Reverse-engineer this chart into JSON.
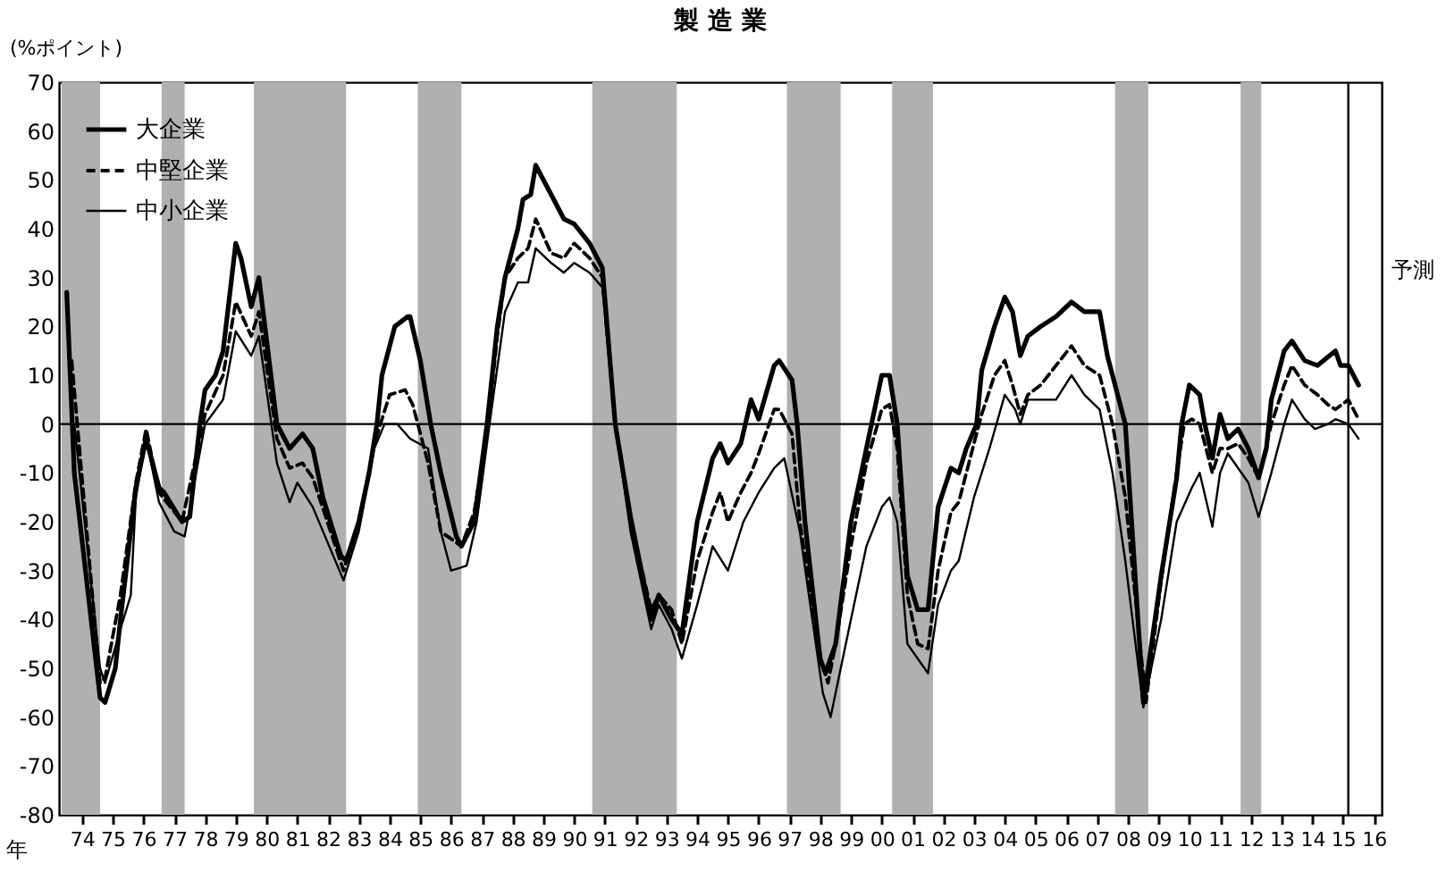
{
  "chart_data": {
    "type": "line",
    "title": "製 造 業",
    "ylabel": "(%ポイント)",
    "xlabel": "年",
    "xlim": [
      "1973-10",
      "2016-10"
    ],
    "ylim": [
      -80,
      70
    ],
    "yticks": [
      -80,
      -70,
      -60,
      -50,
      -40,
      -30,
      -20,
      -10,
      0,
      10,
      20,
      30,
      40,
      50,
      60,
      70
    ],
    "xticks": [
      {
        "value": "1974-07",
        "label": "74"
      },
      {
        "value": "1975-07",
        "label": "75"
      },
      {
        "value": "1976-07",
        "label": "76"
      },
      {
        "value": "1977-07",
        "label": "77"
      },
      {
        "value": "1978-07",
        "label": "78"
      },
      {
        "value": "1979-07",
        "label": "79"
      },
      {
        "value": "1980-07",
        "label": "80"
      },
      {
        "value": "1981-07",
        "label": "81"
      },
      {
        "value": "1982-07",
        "label": "82"
      },
      {
        "value": "1983-07",
        "label": "83"
      },
      {
        "value": "1984-07",
        "label": "84"
      },
      {
        "value": "1985-07",
        "label": "85"
      },
      {
        "value": "1986-07",
        "label": "86"
      },
      {
        "value": "1987-07",
        "label": "87"
      },
      {
        "value": "1988-07",
        "label": "88"
      },
      {
        "value": "1989-07",
        "label": "89"
      },
      {
        "value": "1990-07",
        "label": "90"
      },
      {
        "value": "1991-07",
        "label": "91"
      },
      {
        "value": "1992-07",
        "label": "92"
      },
      {
        "value": "1993-07",
        "label": "93"
      },
      {
        "value": "1994-07",
        "label": "94"
      },
      {
        "value": "1995-07",
        "label": "95"
      },
      {
        "value": "1996-07",
        "label": "96"
      },
      {
        "value": "1997-07",
        "label": "97"
      },
      {
        "value": "1998-07",
        "label": "98"
      },
      {
        "value": "1999-07",
        "label": "99"
      },
      {
        "value": "2000-07",
        "label": "00"
      },
      {
        "value": "2001-07",
        "label": "01"
      },
      {
        "value": "2002-07",
        "label": "02"
      },
      {
        "value": "2003-07",
        "label": "03"
      },
      {
        "value": "2004-07",
        "label": "04"
      },
      {
        "value": "2005-07",
        "label": "05"
      },
      {
        "value": "2006-07",
        "label": "06"
      },
      {
        "value": "2007-07",
        "label": "07"
      },
      {
        "value": "2008-07",
        "label": "08"
      },
      {
        "value": "2009-07",
        "label": "09"
      },
      {
        "value": "2010-07",
        "label": "10"
      },
      {
        "value": "2011-07",
        "label": "11"
      },
      {
        "value": "2012-07",
        "label": "12"
      },
      {
        "value": "2013-07",
        "label": "13"
      },
      {
        "value": "2014-07",
        "label": "14"
      },
      {
        "value": "2015-07",
        "label": "15"
      },
      {
        "value": "2016-07",
        "label": "16"
      }
    ],
    "grid": false,
    "legend": "top left",
    "series": [
      {
        "name": "大企業",
        "color": "#000000",
        "line_style": "solid",
        "x": [
          "1974-01",
          "1974-04",
          "1975-02",
          "1975-04",
          "1975-08",
          "1975-10",
          "1976-04",
          "1976-08",
          "1977-01",
          "1977-03",
          "1977-10",
          "1978-01",
          "1978-05",
          "1978-07",
          "1978-11",
          "1979-02",
          "1979-07",
          "1979-09",
          "1980-01",
          "1980-04",
          "1980-11",
          "1981-04",
          "1981-09",
          "1982-01",
          "1982-05",
          "1982-12",
          "1983-02",
          "1983-07",
          "1983-11",
          "1984-02",
          "1984-04",
          "1984-09",
          "1985-02",
          "1985-03",
          "1985-07",
          "1985-11",
          "1986-03",
          "1986-09",
          "1986-11",
          "1987-04",
          "1987-09",
          "1988-01",
          "1988-04",
          "1988-09",
          "1988-11",
          "1989-02",
          "1989-04",
          "1989-11",
          "1990-03",
          "1990-07",
          "1991-01",
          "1991-06",
          "1991-11",
          "1992-05",
          "1993-01",
          "1993-04",
          "1993-09",
          "1994-01",
          "1994-07",
          "1995-01",
          "1995-04",
          "1995-07",
          "1995-12",
          "1996-04",
          "1996-07",
          "1997-01",
          "1997-03",
          "1997-08",
          "1997-10",
          "1998-01",
          "1998-07",
          "1998-09",
          "1999-01",
          "1999-07",
          "1999-11",
          "2000-03",
          "2000-07",
          "2000-10",
          "2001-01",
          "2001-05",
          "2001-09",
          "2002-01",
          "2002-05",
          "2002-10",
          "2003-01",
          "2003-04",
          "2003-08",
          "2003-10",
          "2004-03",
          "2004-07",
          "2004-10",
          "2005-01",
          "2005-04",
          "2005-09",
          "2006-03",
          "2006-09",
          "2007-02",
          "2007-08",
          "2007-11",
          "2008-06",
          "2009-01",
          "2009-08",
          "2010-02",
          "2010-04",
          "2010-07",
          "2010-11",
          "2011-01",
          "2011-04",
          "2011-07",
          "2011-10",
          "2012-02",
          "2012-06",
          "2012-10",
          "2013-01",
          "2013-03",
          "2013-08",
          "2013-11",
          "2014-04",
          "2014-09",
          "2015-04",
          "2015-06",
          "2015-09",
          "2016-01"
        ],
        "values": [
          27,
          -10,
          -56,
          -57,
          -50,
          -40,
          -13,
          -3,
          -13,
          -14,
          -20,
          -19,
          0,
          7,
          10,
          15,
          37,
          34,
          24,
          30,
          0,
          -5,
          -2,
          -5,
          -15,
          -27,
          -28,
          -20,
          -10,
          0,
          10,
          20,
          22,
          22,
          13,
          0,
          -10,
          -23,
          -25,
          -20,
          0,
          20,
          30,
          40,
          46,
          47,
          53,
          46,
          42,
          41,
          37,
          32,
          0,
          -19,
          -40,
          -35,
          -40,
          -43,
          -20,
          -7,
          -4,
          -8,
          -4,
          5,
          1,
          12,
          13,
          9,
          0,
          -20,
          -48,
          -51,
          -45,
          -20,
          -10,
          0,
          10,
          10,
          0,
          -31,
          -38,
          -38,
          -17,
          -9,
          -10,
          -5,
          0,
          11,
          20,
          26,
          23,
          14,
          18,
          20,
          22,
          25,
          23,
          23,
          14,
          0,
          -57,
          -31,
          -11,
          0,
          8,
          6,
          0,
          -7,
          2,
          -3,
          -1,
          -5,
          -11,
          -5,
          5,
          15,
          17,
          13,
          12,
          15,
          12,
          12,
          8
        ]
      },
      {
        "name": "中堅企業",
        "color": "#000000",
        "line_style": "dashed",
        "x": [
          "1974-03",
          "1975-02",
          "1975-04",
          "1975-10",
          "1976-04",
          "1976-08",
          "1977-01",
          "1977-10",
          "1978-07",
          "1979-02",
          "1979-07",
          "1980-01",
          "1980-04",
          "1980-11",
          "1981-04",
          "1981-09",
          "1982-01",
          "1983-01",
          "1983-07",
          "1984-01",
          "1984-07",
          "1985-01",
          "1985-04",
          "1985-10",
          "1986-03",
          "1986-11",
          "1987-04",
          "1987-09",
          "1988-01",
          "1988-04",
          "1988-09",
          "1989-01",
          "1989-04",
          "1989-10",
          "1990-03",
          "1990-07",
          "1991-01",
          "1991-06",
          "1991-11",
          "1992-05",
          "1993-01",
          "1993-04",
          "1993-09",
          "1994-01",
          "1994-07",
          "1995-01",
          "1995-04",
          "1995-07",
          "1995-12",
          "1996-04",
          "1996-07",
          "1997-01",
          "1997-03",
          "1997-08",
          "1997-11",
          "1998-07",
          "1998-10",
          "1999-01",
          "1999-07",
          "2000-01",
          "2000-07",
          "2000-10",
          "2001-01",
          "2001-05",
          "2001-09",
          "2002-01",
          "2002-05",
          "2002-10",
          "2003-01",
          "2003-07",
          "2003-10",
          "2004-03",
          "2004-07",
          "2004-10",
          "2005-01",
          "2005-04",
          "2005-09",
          "2006-03",
          "2006-09",
          "2007-02",
          "2007-08",
          "2008-01",
          "2008-06",
          "2009-02",
          "2009-08",
          "2010-02",
          "2010-05",
          "2010-08",
          "2010-11",
          "2011-04",
          "2011-07",
          "2011-10",
          "2012-02",
          "2012-06",
          "2012-10",
          "2013-03",
          "2013-08",
          "2013-11",
          "2014-04",
          "2014-09",
          "2015-01",
          "2015-04",
          "2015-09",
          "2016-01"
        ],
        "values": [
          13,
          -53,
          -52,
          -35,
          -12,
          -1,
          -14,
          -20,
          2,
          10,
          25,
          18,
          23,
          -3,
          -9,
          -8,
          -11,
          -30,
          -20,
          -4,
          6,
          7,
          4,
          -8,
          -22,
          -25,
          -18,
          -2,
          18,
          30,
          34,
          36,
          42,
          35,
          34,
          37,
          34,
          30,
          0,
          -20,
          -38,
          -35,
          -38,
          -45,
          -28,
          -18,
          -14,
          -20,
          -14,
          -10,
          -6,
          3,
          3,
          -2,
          -20,
          -48,
          -53,
          -45,
          -25,
          -8,
          3,
          4,
          -5,
          -35,
          -45,
          -46,
          -30,
          -18,
          -16,
          -4,
          2,
          10,
          13,
          8,
          2,
          6,
          8,
          12,
          16,
          12,
          10,
          0,
          -15,
          -57,
          -32,
          -10,
          0,
          1,
          0,
          -10,
          -5,
          -5,
          -4,
          -7,
          -11,
          0,
          8,
          12,
          8,
          6,
          4,
          3,
          5,
          1
        ]
      },
      {
        "name": "中小企業",
        "color": "#000000",
        "line_style": "solid",
        "x": [
          "1974-04",
          "1975-02",
          "1975-04",
          "1975-10",
          "1976-02",
          "1976-04",
          "1976-08",
          "1977-01",
          "1977-07",
          "1977-11",
          "1978-07",
          "1979-02",
          "1979-07",
          "1980-01",
          "1980-04",
          "1980-11",
          "1981-04",
          "1981-07",
          "1982-01",
          "1983-01",
          "1983-07",
          "1984-01",
          "1984-05",
          "1984-10",
          "1985-03",
          "1985-10",
          "1986-03",
          "1986-07",
          "1987-01",
          "1987-05",
          "1987-10",
          "1988-04",
          "1988-09",
          "1989-01",
          "1989-04",
          "1989-10",
          "1990-03",
          "1990-07",
          "1991-01",
          "1991-06",
          "1991-11",
          "1992-05",
          "1993-01",
          "1993-04",
          "1993-09",
          "1994-01",
          "1994-07",
          "1995-01",
          "1995-07",
          "1996-01",
          "1996-07",
          "1997-01",
          "1997-05",
          "1997-11",
          "1998-08",
          "1998-11",
          "1999-07",
          "2000-01",
          "2000-07",
          "2000-10",
          "2001-01",
          "2001-05",
          "2002-01",
          "2002-05",
          "2002-10",
          "2003-01",
          "2003-07",
          "2004-01",
          "2004-07",
          "2004-11",
          "2005-01",
          "2005-04",
          "2006-03",
          "2006-09",
          "2007-02",
          "2007-08",
          "2008-01",
          "2008-06",
          "2009-01",
          "2009-08",
          "2010-02",
          "2010-08",
          "2010-11",
          "2011-04",
          "2011-07",
          "2011-10",
          "2012-06",
          "2012-10",
          "2013-03",
          "2013-08",
          "2013-11",
          "2014-04",
          "2014-08",
          "2015-01",
          "2015-04",
          "2015-09",
          "2016-01"
        ],
        "values": [
          0,
          -50,
          -53,
          -42,
          -35,
          -15,
          -3,
          -16,
          -22,
          -23,
          0,
          5,
          19,
          14,
          18,
          -8,
          -16,
          -12,
          -17,
          -32,
          -22,
          -5,
          0,
          0,
          -3,
          -5,
          -22,
          -30,
          -29,
          -20,
          0,
          23,
          29,
          29,
          36,
          33,
          31,
          33,
          31,
          28,
          0,
          -22,
          -42,
          -37,
          -42,
          -48,
          -37,
          -25,
          -30,
          -20,
          -14,
          -9,
          -7,
          -22,
          -55,
          -60,
          -40,
          -25,
          -17,
          -15,
          -20,
          -45,
          -51,
          -37,
          -30,
          -28,
          -15,
          -5,
          6,
          3,
          0,
          5,
          5,
          10,
          6,
          3,
          -10,
          -28,
          -58,
          -40,
          -20,
          -13,
          -10,
          -21,
          -10,
          -6,
          -12,
          -19,
          -10,
          0,
          5,
          1,
          -1,
          0,
          1,
          0,
          -3
        ]
      }
    ],
    "bands": [
      {
        "axis": "x",
        "from": "1973-11",
        "to": "1975-02",
        "color": "#b0b0b0"
      },
      {
        "axis": "x",
        "from": "1977-02",
        "to": "1977-11",
        "color": "#b0b0b0"
      },
      {
        "axis": "x",
        "from": "1980-02",
        "to": "1983-02",
        "color": "#b0b0b0"
      },
      {
        "axis": "x",
        "from": "1985-06",
        "to": "1986-11",
        "color": "#b0b0b0"
      },
      {
        "axis": "x",
        "from": "1991-02",
        "to": "1993-11",
        "color": "#b0b0b0"
      },
      {
        "axis": "x",
        "from": "1997-06",
        "to": "1999-03",
        "color": "#b0b0b0"
      },
      {
        "axis": "x",
        "from": "2000-11",
        "to": "2002-03",
        "color": "#b0b0b0"
      },
      {
        "axis": "x",
        "from": "2008-02",
        "to": "2009-03",
        "color": "#b0b0b0"
      },
      {
        "axis": "x",
        "from": "2012-03",
        "to": "2012-11",
        "color": "#b0b0b0"
      }
    ],
    "ref_lines": [
      {
        "axis": "y",
        "value": 0,
        "color": "#000000"
      },
      {
        "axis": "x",
        "value": "2015-09",
        "label": "予測",
        "color": "#000000"
      }
    ]
  }
}
